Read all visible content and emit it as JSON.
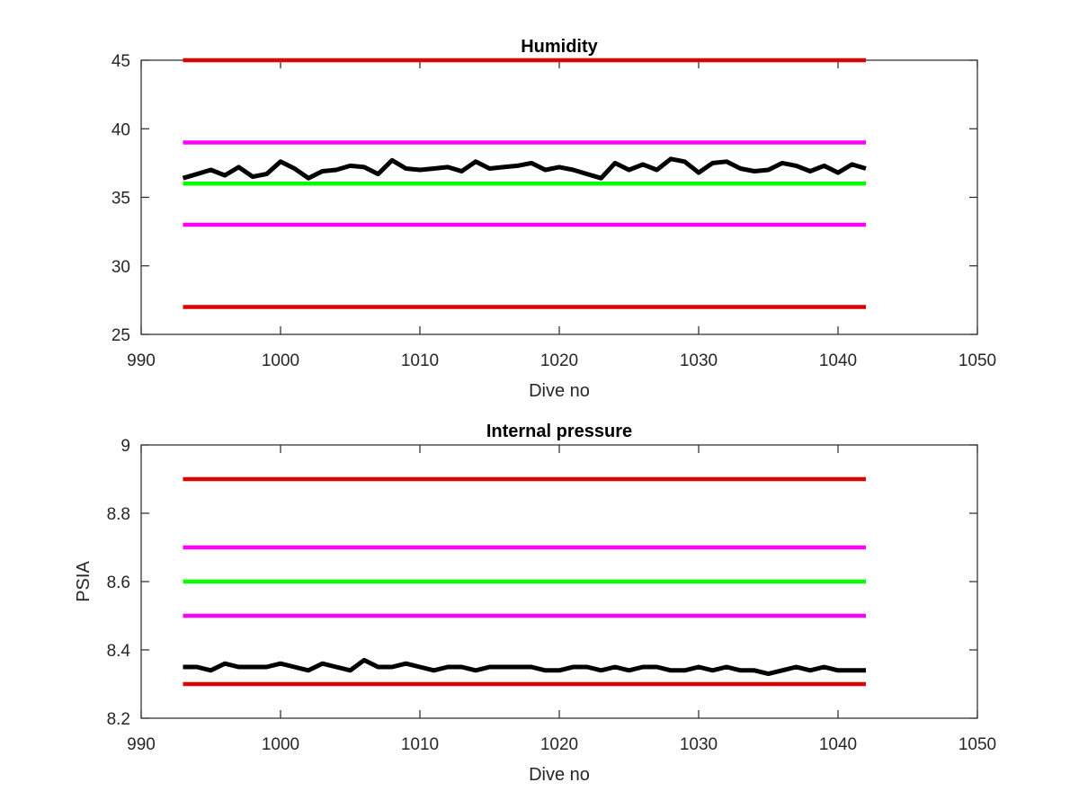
{
  "chart_data": [
    {
      "type": "line",
      "title": "Humidity",
      "xlabel": "Dive no",
      "ylabel": "",
      "xlim": [
        990,
        1050
      ],
      "ylim": [
        25,
        45
      ],
      "xticks": [
        990,
        1000,
        1010,
        1020,
        1030,
        1040,
        1050
      ],
      "yticks": [
        25,
        30,
        35,
        40,
        45
      ],
      "grid": false,
      "series": [
        {
          "role": "limit",
          "color": "#e10000",
          "x": [
            993,
            1042
          ],
          "values": [
            45,
            45
          ]
        },
        {
          "role": "limit",
          "color": "#ff00ff",
          "x": [
            993,
            1042
          ],
          "values": [
            39,
            39
          ]
        },
        {
          "role": "nominal",
          "color": "#00ff00",
          "x": [
            993,
            1042
          ],
          "values": [
            36,
            36
          ]
        },
        {
          "role": "limit",
          "color": "#ff00ff",
          "x": [
            993,
            1042
          ],
          "values": [
            33,
            33
          ]
        },
        {
          "role": "limit",
          "color": "#e10000",
          "x": [
            993,
            1042
          ],
          "values": [
            27,
            27
          ]
        },
        {
          "role": "measured",
          "color": "#000000",
          "x": [
            993,
            994,
            995,
            996,
            997,
            998,
            999,
            1000,
            1001,
            1002,
            1003,
            1004,
            1005,
            1006,
            1007,
            1008,
            1009,
            1010,
            1011,
            1012,
            1013,
            1014,
            1015,
            1016,
            1017,
            1018,
            1019,
            1020,
            1021,
            1022,
            1023,
            1024,
            1025,
            1026,
            1027,
            1028,
            1029,
            1030,
            1031,
            1032,
            1033,
            1034,
            1035,
            1036,
            1037,
            1038,
            1039,
            1040,
            1041,
            1042
          ],
          "values": [
            36.4,
            36.7,
            37.0,
            36.6,
            37.2,
            36.5,
            36.7,
            37.6,
            37.1,
            36.4,
            36.9,
            37.0,
            37.3,
            37.2,
            36.7,
            37.7,
            37.1,
            37.0,
            37.1,
            37.2,
            36.9,
            37.6,
            37.1,
            37.2,
            37.3,
            37.5,
            37.0,
            37.2,
            37.0,
            36.7,
            36.4,
            37.5,
            37.0,
            37.4,
            37.0,
            37.8,
            37.6,
            36.8,
            37.5,
            37.6,
            37.1,
            36.9,
            37.0,
            37.5,
            37.3,
            36.9,
            37.3,
            36.8,
            37.4,
            37.1
          ]
        }
      ]
    },
    {
      "type": "line",
      "title": "Internal pressure",
      "xlabel": "Dive no",
      "ylabel": "PSIA",
      "xlim": [
        990,
        1050
      ],
      "ylim": [
        8.2,
        9.0
      ],
      "xticks": [
        990,
        1000,
        1010,
        1020,
        1030,
        1040,
        1050
      ],
      "yticks": [
        8.2,
        8.4,
        8.6,
        8.8,
        9.0
      ],
      "ytick_labels": [
        "8.2",
        "8.4",
        "8.6",
        "8.8",
        "9"
      ],
      "grid": false,
      "series": [
        {
          "role": "limit",
          "color": "#e10000",
          "x": [
            993,
            1042
          ],
          "values": [
            8.9,
            8.9
          ]
        },
        {
          "role": "limit",
          "color": "#ff00ff",
          "x": [
            993,
            1042
          ],
          "values": [
            8.7,
            8.7
          ]
        },
        {
          "role": "nominal",
          "color": "#00ff00",
          "x": [
            993,
            1042
          ],
          "values": [
            8.6,
            8.6
          ]
        },
        {
          "role": "limit",
          "color": "#ff00ff",
          "x": [
            993,
            1042
          ],
          "values": [
            8.5,
            8.5
          ]
        },
        {
          "role": "limit",
          "color": "#e10000",
          "x": [
            993,
            1042
          ],
          "values": [
            8.3,
            8.3
          ]
        },
        {
          "role": "measured",
          "color": "#000000",
          "x": [
            993,
            994,
            995,
            996,
            997,
            998,
            999,
            1000,
            1001,
            1002,
            1003,
            1004,
            1005,
            1006,
            1007,
            1008,
            1009,
            1010,
            1011,
            1012,
            1013,
            1014,
            1015,
            1016,
            1017,
            1018,
            1019,
            1020,
            1021,
            1022,
            1023,
            1024,
            1025,
            1026,
            1027,
            1028,
            1029,
            1030,
            1031,
            1032,
            1033,
            1034,
            1035,
            1036,
            1037,
            1038,
            1039,
            1040,
            1041,
            1042
          ],
          "values": [
            8.35,
            8.35,
            8.34,
            8.36,
            8.35,
            8.35,
            8.35,
            8.36,
            8.35,
            8.34,
            8.36,
            8.35,
            8.34,
            8.37,
            8.35,
            8.35,
            8.36,
            8.35,
            8.34,
            8.35,
            8.35,
            8.34,
            8.35,
            8.35,
            8.35,
            8.35,
            8.34,
            8.34,
            8.35,
            8.35,
            8.34,
            8.35,
            8.34,
            8.35,
            8.35,
            8.34,
            8.34,
            8.35,
            8.34,
            8.35,
            8.34,
            8.34,
            8.33,
            8.34,
            8.35,
            8.34,
            8.35,
            8.34,
            8.34,
            8.34
          ]
        }
      ]
    }
  ]
}
